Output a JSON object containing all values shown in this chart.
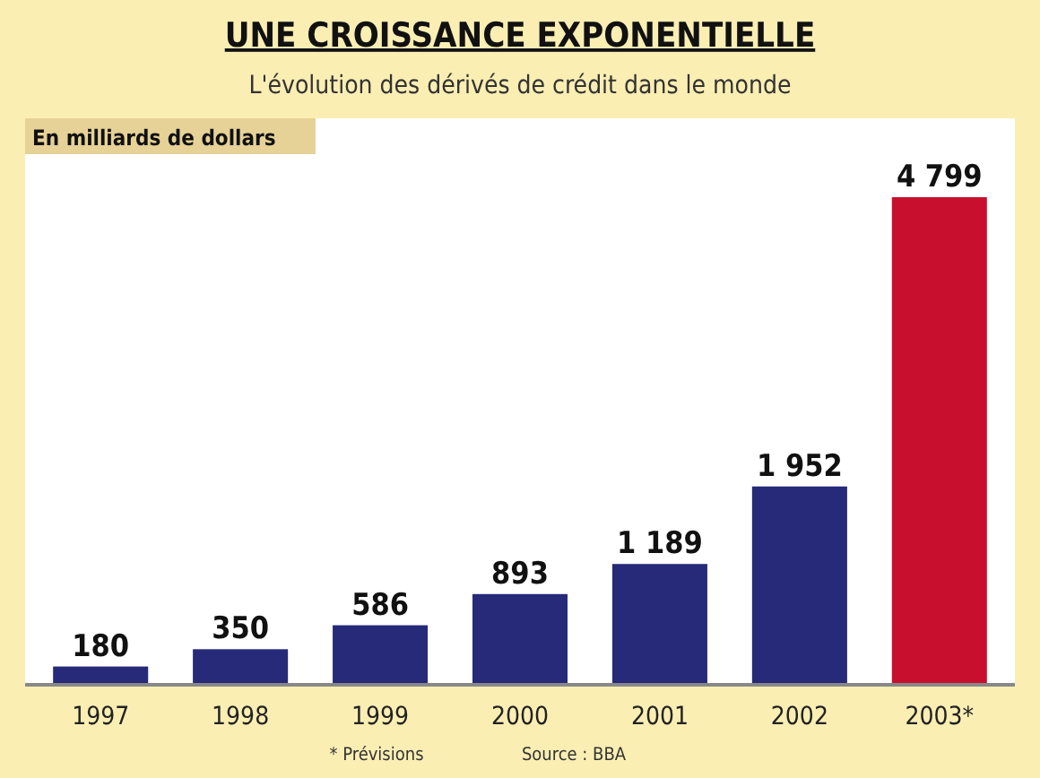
{
  "chart_data": {
    "type": "bar",
    "title": "UNE CROISSANCE EXPONENTIELLE",
    "subtitle": "L'évolution des dérivés de crédit dans le monde",
    "ylabel": "En milliards de dollars",
    "categories": [
      "1997",
      "1998",
      "1999",
      "2000",
      "2001",
      "2002",
      "2003*"
    ],
    "values": [
      180,
      350,
      586,
      893,
      1189,
      1952,
      4799
    ],
    "value_labels": [
      "180",
      "350",
      "586",
      "893",
      "1 189",
      "1 952",
      "4 799"
    ],
    "colors": [
      "#262a78",
      "#262a78",
      "#262a78",
      "#262a78",
      "#262a78",
      "#262a78",
      "#c8102e"
    ],
    "annotations": [
      "* Prévisions",
      "Source : BBA"
    ]
  }
}
